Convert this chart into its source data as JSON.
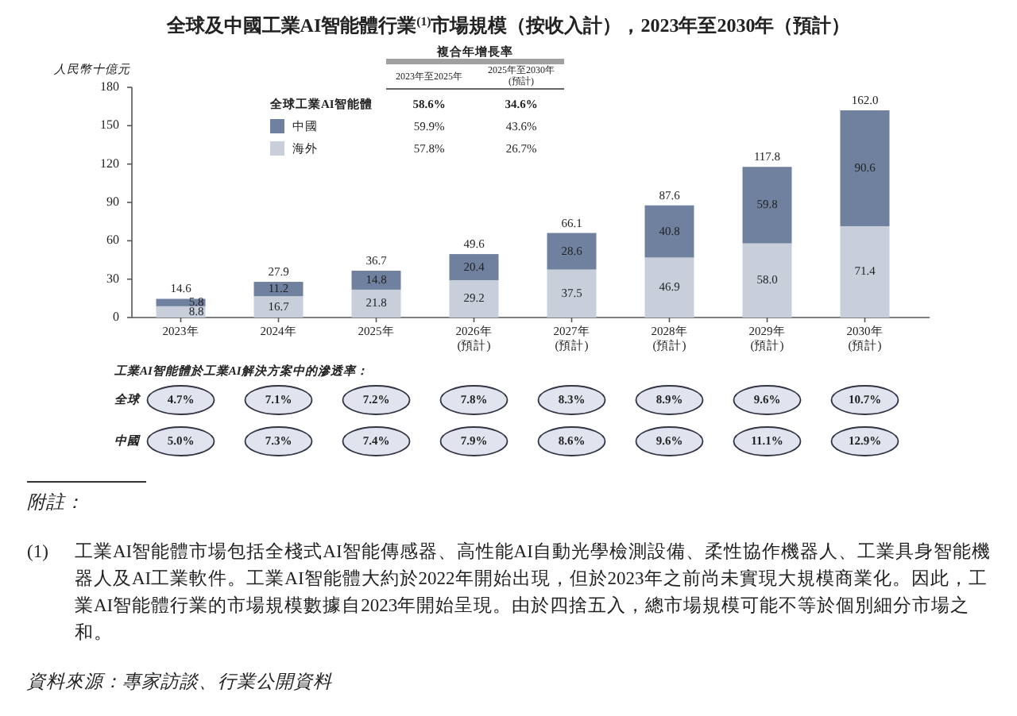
{
  "chart_data": {
    "type": "bar",
    "stacked": true,
    "title": "全球及中國工業AI智能體行業$^{(1)}$市場規模（按收入計），2023年至2030年（預計）",
    "ylabel": "人民幣十億元",
    "legend_title": "全球工業AI智能體",
    "categories": [
      "2023年",
      "2024年",
      "2025年",
      "2026年\n(預計)",
      "2027年\n(預計)",
      "2028年\n(預計)",
      "2029年\n(預計)",
      "2030年\n(預計)"
    ],
    "series": [
      {
        "name": "海外",
        "color": "#c8cfdb",
        "values": [
          8.8,
          16.7,
          21.8,
          29.2,
          37.5,
          46.9,
          58.0,
          71.4
        ],
        "value_labels": [
          "8.8",
          "16.7",
          "21.8",
          "29.2",
          "37.5",
          "46.9",
          "58.0",
          "71.4"
        ]
      },
      {
        "name": "中國",
        "color": "#6f819f",
        "values": [
          5.8,
          11.2,
          14.8,
          20.4,
          28.6,
          40.8,
          59.8,
          90.6
        ],
        "value_labels": [
          "5.8",
          "11.2",
          "14.8",
          "20.4",
          "28.6",
          "40.8",
          "59.8",
          "90.6"
        ]
      }
    ],
    "totals": [
      "14.6",
      "27.9",
      "36.7",
      "49.6",
      "66.1",
      "87.6",
      "117.8",
      "162.0"
    ],
    "ylim": [
      0,
      180
    ],
    "yticks": [
      0,
      30,
      60,
      90,
      120,
      150,
      180
    ],
    "legend": "top left",
    "annotations": [
      "複合年增長率",
      "2023年至2025年",
      "2025年至2030年\n(預計)",
      "58.6%",
      "34.6%",
      "59.9%",
      "43.6%",
      "57.8%",
      "26.7%",
      "工業AI智能體於工業AI解決方案中的滲透率：",
      "全球",
      "4.7%",
      "7.1%",
      "7.2%",
      "7.8%",
      "8.3%",
      "8.9%",
      "9.6%",
      "10.7%",
      "中國",
      "5.0%",
      "7.3%",
      "7.4%",
      "7.9%",
      "8.6%",
      "9.6%",
      "11.1%",
      "12.9%",
      "附註：",
      "(1)",
      "工業AI智能體市場包括全棧式AI智能傳感器、高性能AI自動光學檢測設備、柔性協作機器人、工業具身智能機器人及AI工業軟件。工業AI智能體大約於2022年開始出現，但於2023年之前尚未實現大規模商業化。因此，工業AI智能體行業的市場規模數據自2023年開始呈現。由於四捨五入，總市場規模可能不等於個別細分市場之和。",
      "資料來源：專家訪談、行業公開資料"
    ]
  }
}
